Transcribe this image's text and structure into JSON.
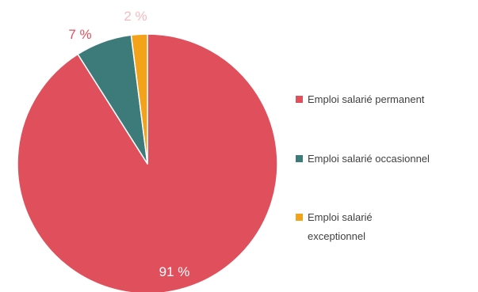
{
  "chart_data": {
    "type": "pie",
    "categories": [
      "Emploi salarié permanent",
      "Emploi salarié occasionnel",
      "Emploi salarié exceptionnel"
    ],
    "values": [
      91,
      7,
      2
    ],
    "value_labels": [
      "91 %",
      "7 %",
      "2 %"
    ],
    "colors": [
      "#e0505c",
      "#3d7b7b",
      "#f5a21b"
    ],
    "label_colors": [
      "#ffffff",
      "#e0505c",
      "#f6b9be"
    ],
    "legend": {
      "placement": "right",
      "items": [
        {
          "lines": [
            "Emploi salarié permanent"
          ]
        },
        {
          "lines": [
            "Emploi salarié occasionnel"
          ]
        },
        {
          "lines": [
            "Emploi salarié",
            "exceptionnel"
          ]
        }
      ]
    }
  }
}
